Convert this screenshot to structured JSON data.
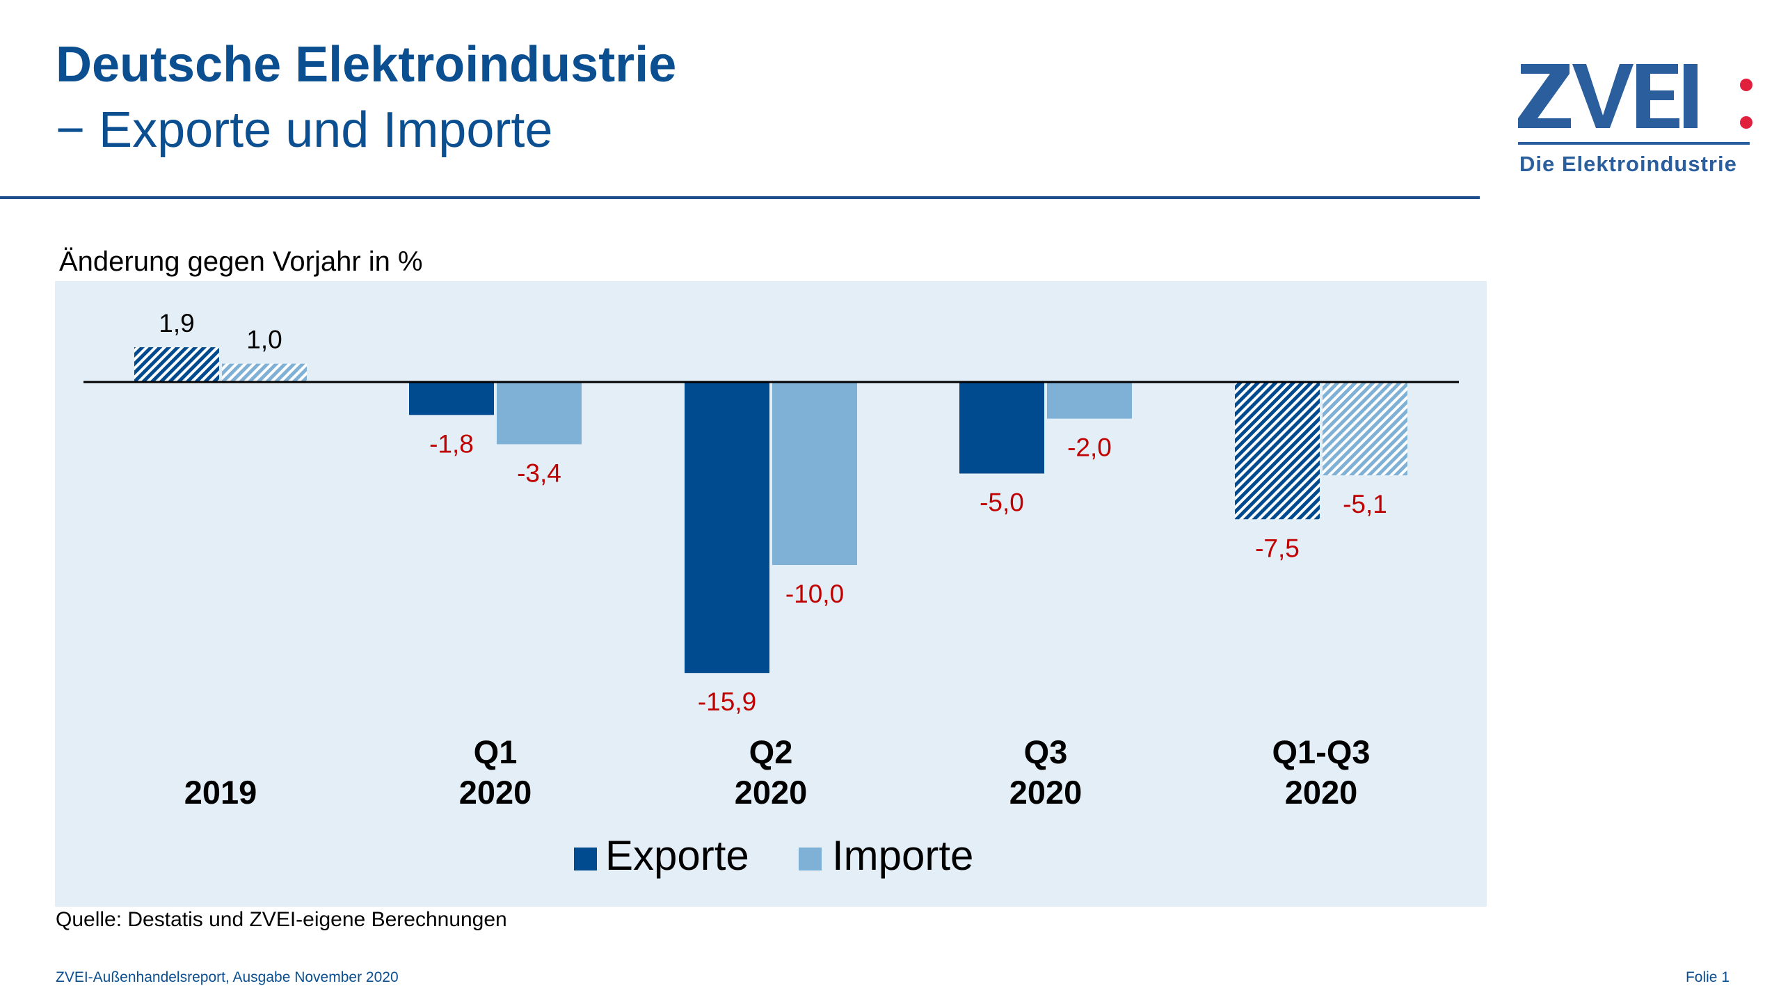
{
  "header": {
    "title": "Deutsche Elektroindustrie",
    "subtitle": "− Exporte und Importe",
    "logo_text": "ZVEI:",
    "logo_tagline": "Die Elektroindustrie"
  },
  "chart_data": {
    "type": "bar",
    "title": "Deutsche Elektroindustrie − Exporte und Importe",
    "ylabel": "Änderung gegen Vorjahr in %",
    "xlabel": "",
    "categories": [
      {
        "line1": "",
        "line2": "2019",
        "hatched": true
      },
      {
        "line1": "Q1",
        "line2": "2020",
        "hatched": false
      },
      {
        "line1": "Q2",
        "line2": "2020",
        "hatched": false
      },
      {
        "line1": "Q3",
        "line2": "2020",
        "hatched": false
      },
      {
        "line1": "Q1-Q3",
        "line2": "2020",
        "hatched": true
      }
    ],
    "series": [
      {
        "name": "Exporte",
        "color": "#004a8f",
        "values": [
          1.9,
          -1.8,
          -15.9,
          -5.0,
          -7.5
        ],
        "labels": [
          "1,9",
          "-1,8",
          "-15,9",
          "-5,0",
          "-7,5"
        ]
      },
      {
        "name": "Importe",
        "color": "#7fb0d5",
        "values": [
          1.0,
          -3.4,
          -10.0,
          -2.0,
          -5.1
        ],
        "labels": [
          "1,0",
          "-3,4",
          "-10,0",
          "-2,0",
          "-5,1"
        ]
      }
    ],
    "ylim": [
      -17,
      5
    ],
    "grid": false,
    "legend": "bottom-center",
    "positive_label_color": "#000000",
    "negative_label_color": "#c00000",
    "panel_color": "#e3eef6"
  },
  "footer": {
    "source": "Quelle: Destatis und ZVEI-eigene Berechnungen",
    "report": "ZVEI-Außenhandelsreport, Ausgabe November 2020",
    "slide": "Folie 1"
  }
}
